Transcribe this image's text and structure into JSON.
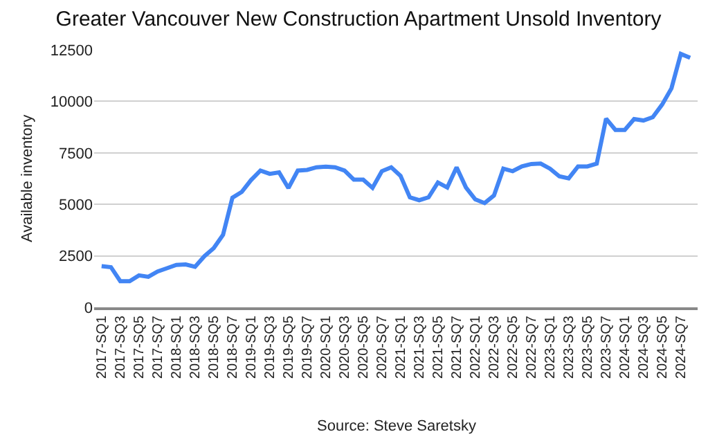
{
  "chart_data": {
    "type": "line",
    "title": "Greater Vancouver New Construction Apartment Unsold Inventory",
    "ylabel": "Available inventory",
    "categories": [
      "2017-SQ1",
      null,
      "2017-SQ3",
      null,
      "2017-SQ5",
      null,
      "2017-SQ7",
      null,
      "2018-SQ1",
      null,
      "2018-SQ3",
      null,
      "2018-SQ5",
      null,
      "2018-SQ7",
      null,
      "2019-SQ1",
      null,
      "2019-SQ3",
      null,
      "2019-SQ5",
      null,
      "2019-SQ7",
      null,
      "2020-SQ1",
      null,
      "2020-SQ3",
      null,
      "2020-SQ5",
      null,
      "2020-SQ7",
      null,
      "2021-SQ1",
      null,
      "2021-SQ3",
      null,
      "2021-SQ5",
      null,
      "2021-SQ7",
      null,
      "2022-SQ1",
      null,
      "2022-SQ3",
      null,
      "2022-SQ5",
      null,
      "2022-SQ7",
      null,
      "2023-SQ1",
      null,
      "2023-SQ3",
      null,
      "2023-SQ5",
      null,
      "2023-SQ7",
      null,
      "2024-SQ1",
      null,
      "2024-SQ3",
      null,
      "2024-SQ5",
      null,
      "2024-SQ7",
      null
    ],
    "series": [
      {
        "color": "#4285f4",
        "values": [
          2000,
          1950,
          1270,
          1270,
          1550,
          1480,
          1740,
          1900,
          2060,
          2080,
          1970,
          2480,
          2870,
          3520,
          5320,
          5600,
          6180,
          6640,
          6480,
          6550,
          5790,
          6640,
          6670,
          6800,
          6830,
          6800,
          6640,
          6200,
          6200,
          5800,
          6610,
          6800,
          6380,
          5340,
          5200,
          5340,
          6060,
          5820,
          6800,
          5820,
          5240,
          5060,
          5430,
          6730,
          6610,
          6840,
          6960,
          6980,
          6730,
          6360,
          6260,
          6840,
          6840,
          6980,
          9160,
          8610,
          8610,
          9140,
          9070,
          9230,
          9840,
          10630,
          12300,
          12110
        ]
      }
    ],
    "ylim": [
      0,
      12500
    ],
    "yticks": [
      0,
      2500,
      5000,
      7500,
      10000,
      12500
    ],
    "grid": "y",
    "marker": "none",
    "line_style": "solid",
    "annotations": [
      "Source: Steve Saretsky"
    ]
  }
}
